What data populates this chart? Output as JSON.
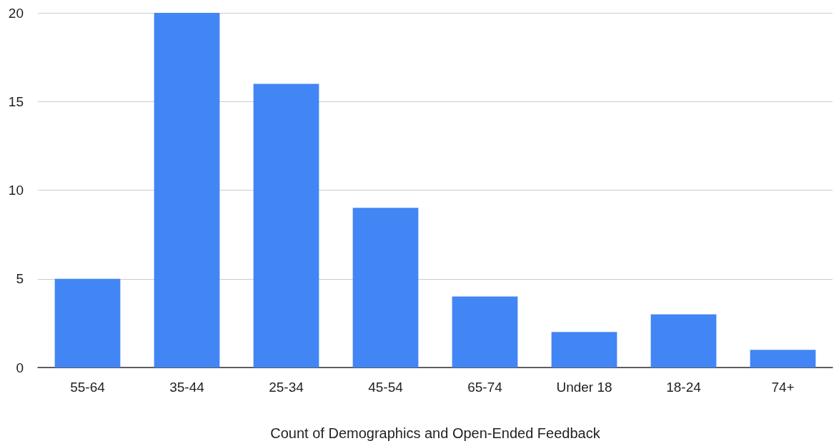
{
  "chart_data": {
    "type": "bar",
    "xlabel": "Count of Demographics and Open-Ended Feedback",
    "categories": [
      "55-64",
      "35-44",
      "25-34",
      "45-54",
      "65-74",
      "Under 18",
      "18-24",
      "74+"
    ],
    "values": [
      5,
      20,
      16,
      9,
      4,
      2,
      3,
      1
    ],
    "color": "#4285f4",
    "ylim": [
      0,
      20
    ],
    "yticks": [
      0,
      5,
      10,
      15,
      20
    ],
    "grid": "y"
  }
}
